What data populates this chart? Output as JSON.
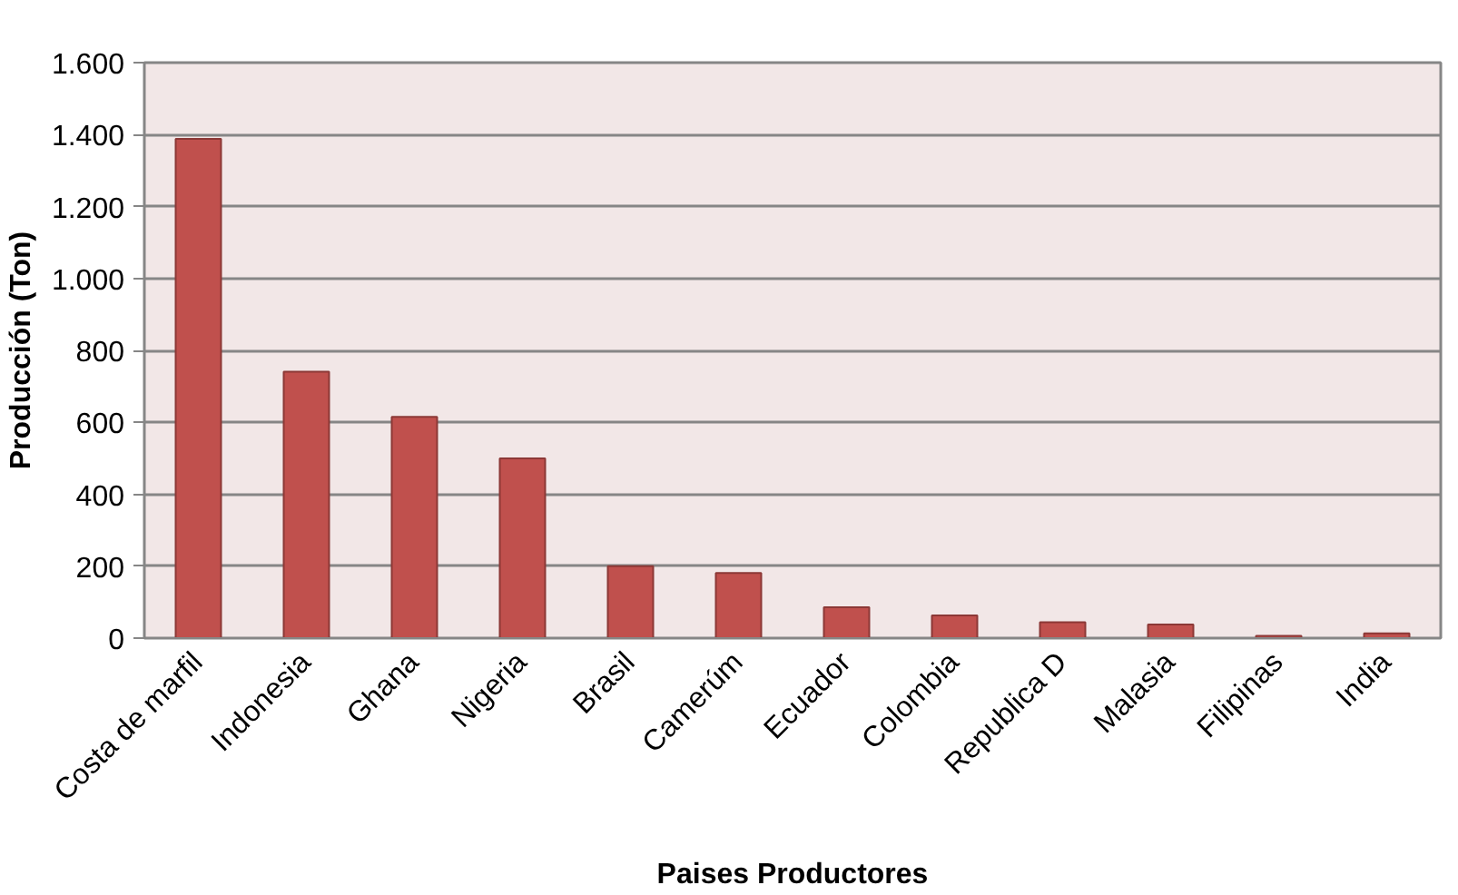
{
  "chart_data": {
    "type": "bar",
    "xlabel": "Paises Productores",
    "ylabel": "Producción (Ton)",
    "categories": [
      "Costa de marfil",
      "Indonesia",
      "Ghana",
      "Nigeria",
      "Brasil",
      "Camerúm",
      "Ecuador",
      "Colombia",
      "Republica D",
      "Malasia",
      "Filipinas",
      "India"
    ],
    "values": [
      1388,
      741,
      615,
      500,
      200,
      181,
      86,
      63,
      44,
      38,
      6,
      13
    ],
    "color": "#c0504d",
    "ylim": [
      0,
      1600
    ],
    "yticks": [
      0,
      {
        "value": 200,
        "label": "200"
      },
      {
        "value": 400,
        "label": "400"
      },
      {
        "value": 600,
        "label": "600"
      },
      {
        "value": 800,
        "label": "800"
      },
      {
        "value": 1000,
        "label": "1.000"
      },
      {
        "value": 1200,
        "label": "1.200"
      },
      {
        "value": 1400,
        "label": "1.400"
      },
      {
        "value": 1600,
        "label": "1.600"
      }
    ],
    "grid": "y"
  }
}
